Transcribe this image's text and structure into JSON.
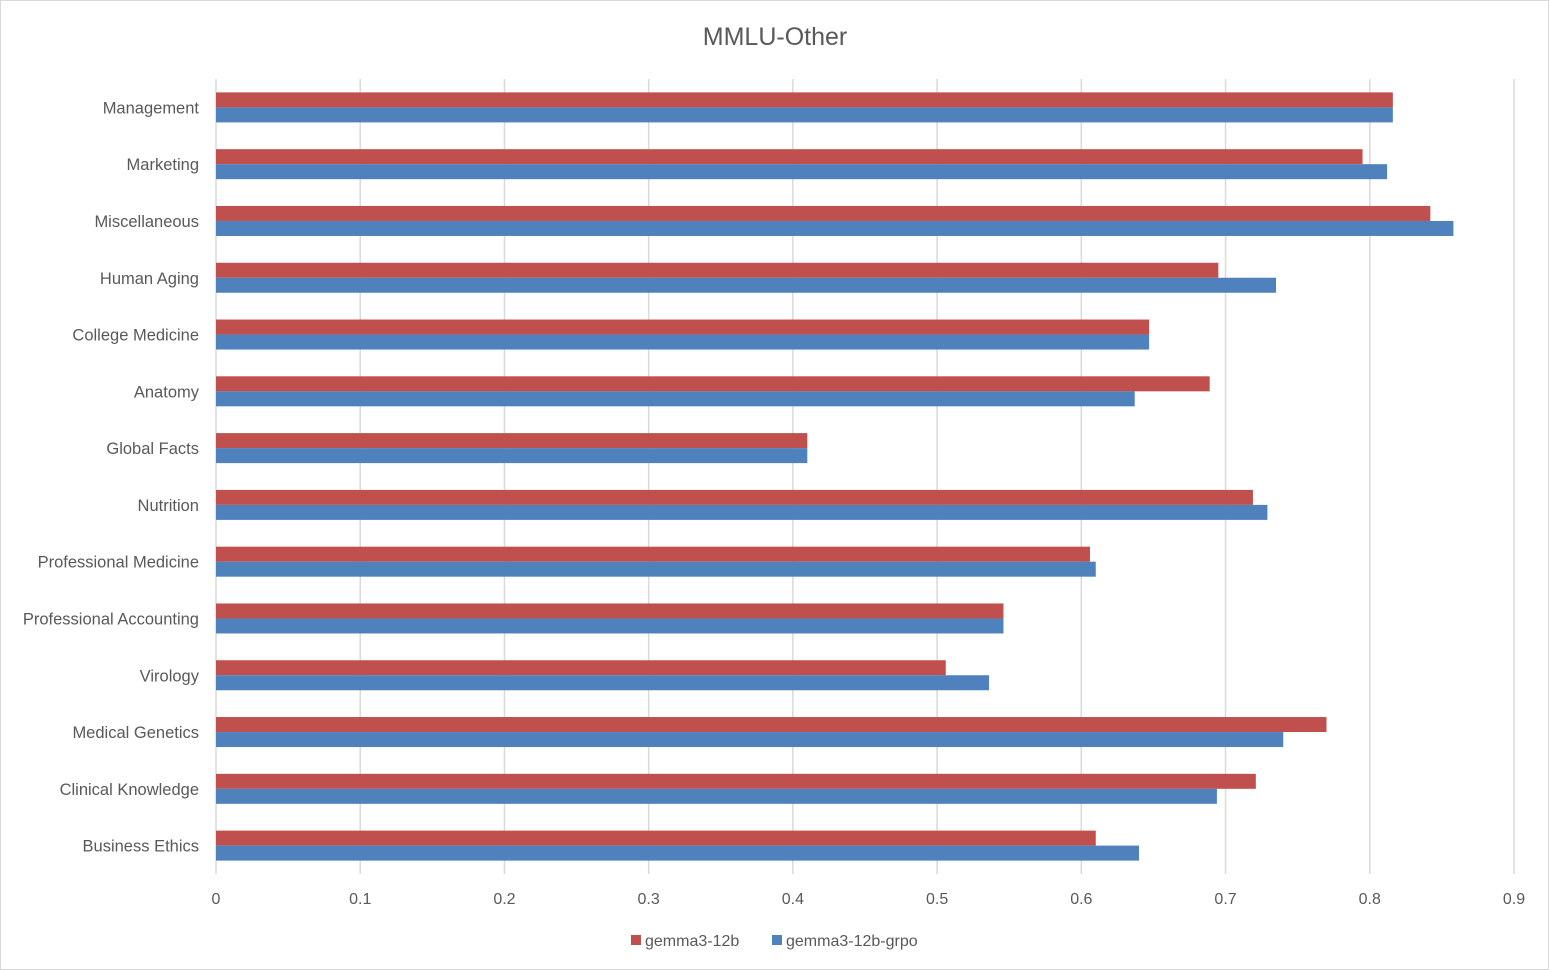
{
  "chart_data": {
    "type": "bar",
    "orientation": "horizontal",
    "title": "MMLU-Other",
    "xlabel": "",
    "ylabel": "",
    "xlim": [
      0,
      0.9
    ],
    "x_ticks": [
      "0",
      "0.1",
      "0.2",
      "0.3",
      "0.4",
      "0.5",
      "0.6",
      "0.7",
      "0.8",
      "0.9"
    ],
    "grid": true,
    "legend_position": "bottom",
    "categories": [
      "Management",
      "Marketing",
      "Miscellaneous",
      "Human Aging",
      "College Medicine",
      "Anatomy",
      "Global Facts",
      "Nutrition",
      "Professional Medicine",
      "Professional Accounting",
      "Virology",
      "Medical Genetics",
      "Clinical Knowledge",
      "Business Ethics"
    ],
    "series": [
      {
        "name": "gemma3-12b",
        "color": "#c0504d",
        "values": [
          0.816,
          0.795,
          0.842,
          0.695,
          0.647,
          0.689,
          0.41,
          0.719,
          0.606,
          0.546,
          0.506,
          0.77,
          0.721,
          0.61
        ]
      },
      {
        "name": "gemma3-12b-grpo",
        "color": "#4f81bd",
        "values": [
          0.816,
          0.812,
          0.858,
          0.735,
          0.647,
          0.637,
          0.41,
          0.729,
          0.61,
          0.546,
          0.536,
          0.74,
          0.694,
          0.64
        ]
      }
    ]
  }
}
